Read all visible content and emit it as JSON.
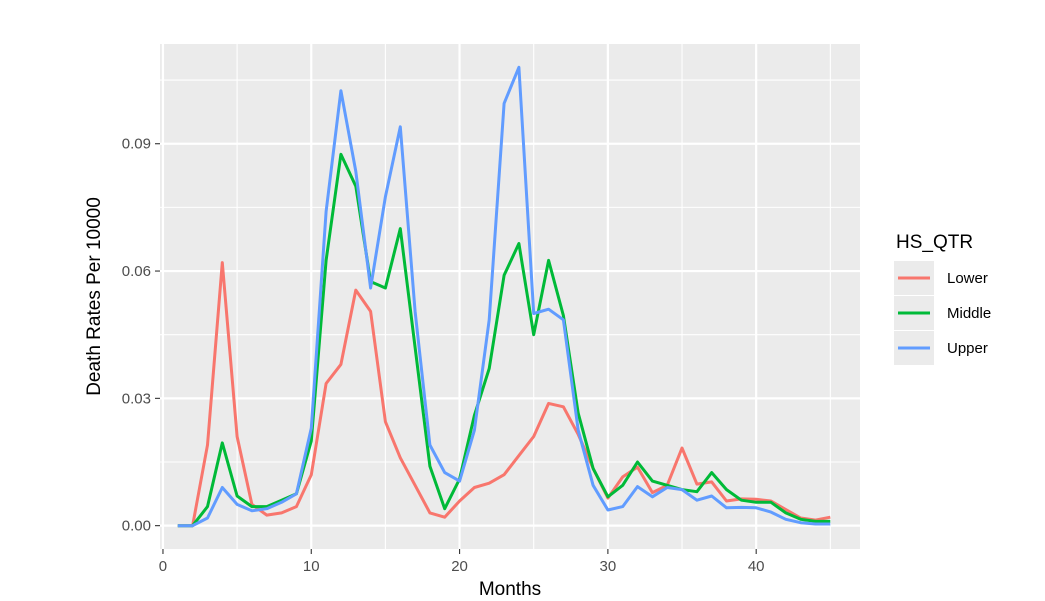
{
  "chart_data": {
    "type": "line",
    "xlabel": "Months",
    "ylabel": "Death Rates Per 10000",
    "xlim": [
      -0.2,
      47.0
    ],
    "ylim": [
      -0.0055,
      0.1135
    ],
    "x_ticks": [
      0,
      10,
      20,
      30,
      40
    ],
    "x_tick_labels": [
      "0",
      "10",
      "20",
      "30",
      "40"
    ],
    "y_ticks": [
      0,
      0.03,
      0.06,
      0.09
    ],
    "y_tick_labels": [
      "0.00",
      "0.03",
      "0.06",
      "0.09"
    ],
    "grid": true,
    "legend": {
      "title": "HS_QTR",
      "position": "right"
    },
    "x": [
      1,
      2,
      3,
      4,
      5,
      6,
      7,
      8,
      9,
      10,
      11,
      12,
      13,
      14,
      15,
      16,
      17,
      18,
      19,
      20,
      21,
      22,
      23,
      24,
      25,
      26,
      27,
      28,
      29,
      30,
      31,
      32,
      33,
      34,
      35,
      36,
      37,
      38,
      39,
      40,
      41,
      42,
      43,
      44,
      45
    ],
    "series": [
      {
        "name": "Lower",
        "color": "#F8766D",
        "values": [
          0,
          0,
          0.019,
          0.062,
          0.021,
          0.005,
          0.0025,
          0.003,
          0.0045,
          0.012,
          0.0335,
          0.038,
          0.0555,
          0.0505,
          0.0245,
          0.016,
          0.0095,
          0.003,
          0.002,
          0.0058,
          0.009,
          0.01,
          0.012,
          0.0165,
          0.021,
          0.0288,
          0.028,
          0.0215,
          0.0135,
          0.0065,
          0.0115,
          0.0138,
          0.0078,
          0.0095,
          0.0183,
          0.0098,
          0.0103,
          0.0058,
          0.0063,
          0.0062,
          0.0058,
          0.0038,
          0.0018,
          0.0013,
          0.002
        ]
      },
      {
        "name": "Middle",
        "color": "#00BA38",
        "values": [
          0,
          0,
          0.0045,
          0.0195,
          0.007,
          0.0045,
          0.0045,
          0.006,
          0.0075,
          0.02,
          0.0625,
          0.0875,
          0.08,
          0.0575,
          0.056,
          0.07,
          0.042,
          0.014,
          0.004,
          0.011,
          0.026,
          0.037,
          0.059,
          0.0665,
          0.045,
          0.0625,
          0.0495,
          0.0265,
          0.0135,
          0.0068,
          0.0095,
          0.015,
          0.0105,
          0.0095,
          0.0085,
          0.008,
          0.0125,
          0.0085,
          0.006,
          0.0055,
          0.0055,
          0.003,
          0.0015,
          0.001,
          0.001
        ]
      },
      {
        "name": "Upper",
        "color": "#619CFF",
        "values": [
          0,
          0,
          0.0018,
          0.009,
          0.005,
          0.0035,
          0.004,
          0.0055,
          0.0075,
          0.023,
          0.074,
          0.1025,
          0.0835,
          0.056,
          0.0775,
          0.094,
          0.0505,
          0.019,
          0.0125,
          0.0105,
          0.0225,
          0.0485,
          0.0995,
          0.108,
          0.05,
          0.051,
          0.0485,
          0.0225,
          0.0095,
          0.0037,
          0.0045,
          0.0092,
          0.0068,
          0.009,
          0.0085,
          0.006,
          0.007,
          0.0042,
          0.0043,
          0.0042,
          0.0032,
          0.0015,
          0.0007,
          0.0004,
          0.0004
        ]
      }
    ]
  }
}
